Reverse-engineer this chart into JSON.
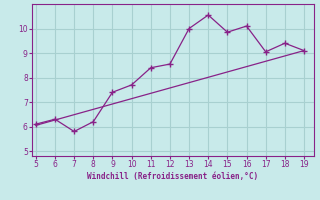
{
  "x": [
    5,
    6,
    7,
    8,
    9,
    10,
    11,
    12,
    13,
    14,
    15,
    16,
    17,
    18,
    19
  ],
  "y": [
    6.1,
    6.3,
    5.8,
    6.2,
    7.4,
    7.7,
    8.4,
    8.55,
    10.0,
    10.55,
    9.85,
    10.1,
    9.05,
    9.4,
    9.1
  ],
  "trend_x": [
    5,
    19
  ],
  "trend_y": [
    6.05,
    9.1
  ],
  "line_color": "#882288",
  "bg_color": "#c8eaea",
  "grid_color": "#a8d0d0",
  "xlabel": "Windchill (Refroidissement éolien,°C)",
  "xlim": [
    4.8,
    19.5
  ],
  "ylim": [
    4.8,
    11.0
  ],
  "xticks": [
    5,
    6,
    7,
    8,
    9,
    10,
    11,
    12,
    13,
    14,
    15,
    16,
    17,
    18,
    19
  ],
  "yticks": [
    5,
    6,
    7,
    8,
    9,
    10
  ]
}
